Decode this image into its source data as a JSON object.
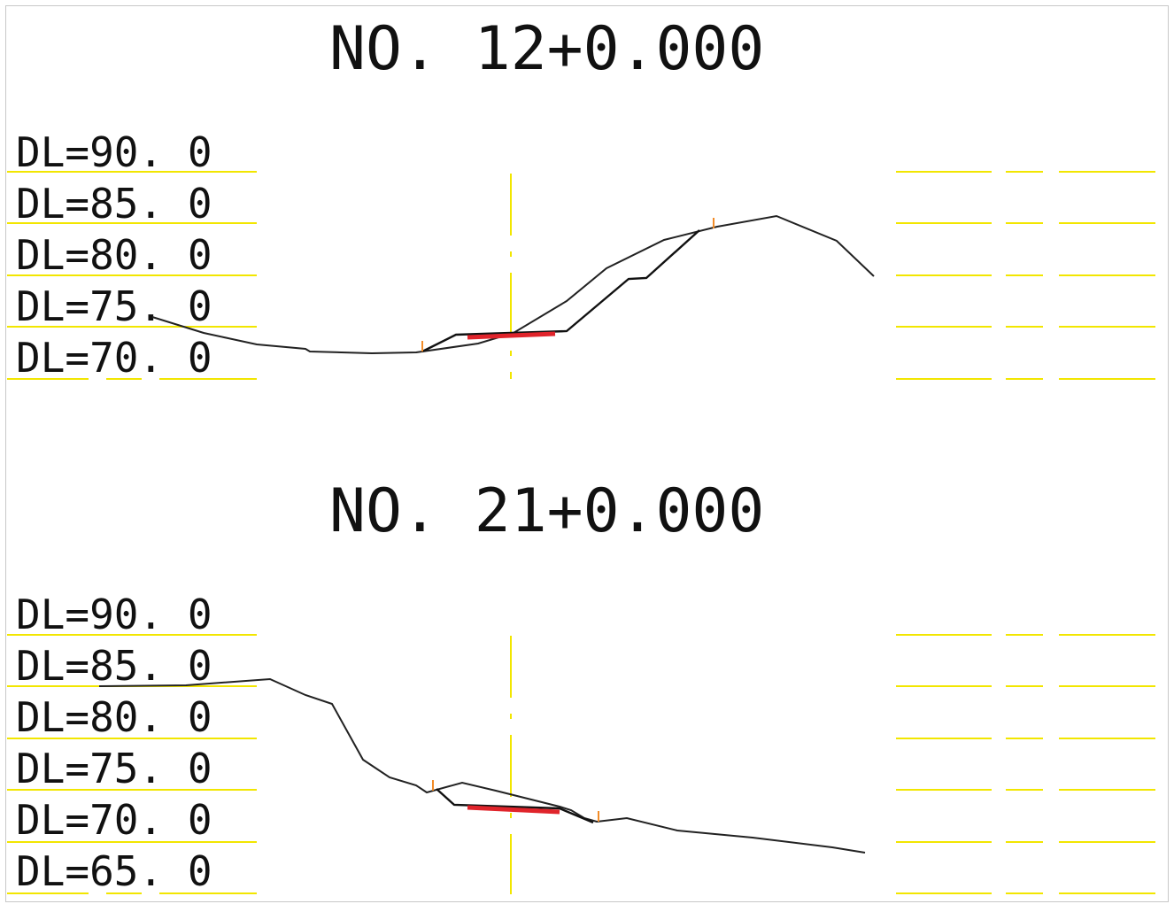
{
  "sections": [
    {
      "title": "NO. 12+0.000",
      "levels": [
        "DL=90. 0",
        "DL=85. 0",
        "DL=80. 0",
        "DL=75. 0",
        "DL=70. 0"
      ]
    },
    {
      "title": "NO. 21+0.000",
      "levels": [
        "DL=90. 0",
        "DL=85. 0",
        "DL=80. 0",
        "DL=75. 0",
        "DL=70. 0",
        "DL=65. 0"
      ]
    }
  ],
  "colors": {
    "grid": "#f2e600",
    "road": "#e0242b",
    "stake": "#f28c28",
    "line": "#222222"
  }
}
